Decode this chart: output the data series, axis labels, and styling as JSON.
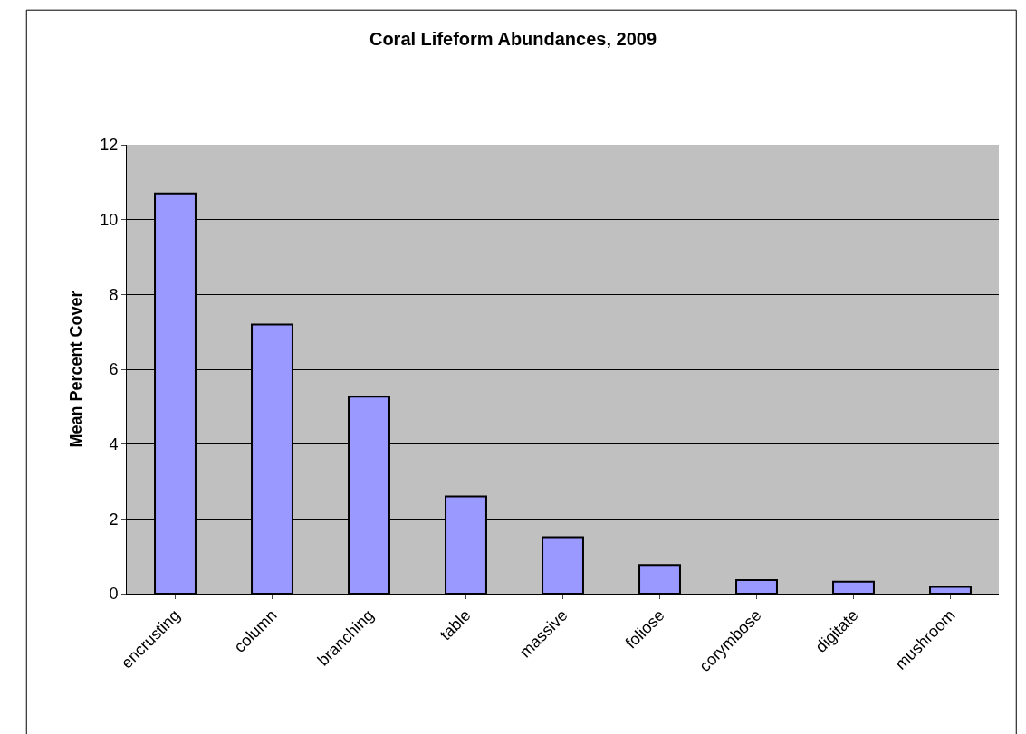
{
  "chart_data": {
    "type": "bar",
    "title": "Coral Lifeform Abundances, 2009",
    "ylabel": "Mean Percent Cover",
    "categories": [
      "encrusting",
      "column",
      "branching",
      "table",
      "massive",
      "foliose",
      "corymbose",
      "digitate",
      "mushroom"
    ],
    "values": [
      10.7,
      7.2,
      5.27,
      2.6,
      1.51,
      0.77,
      0.36,
      0.32,
      0.18
    ],
    "color": "#9999ff",
    "ylim": [
      0,
      12
    ],
    "yticks": [
      0,
      2,
      4,
      6,
      8,
      10,
      12
    ],
    "grid": "y"
  }
}
